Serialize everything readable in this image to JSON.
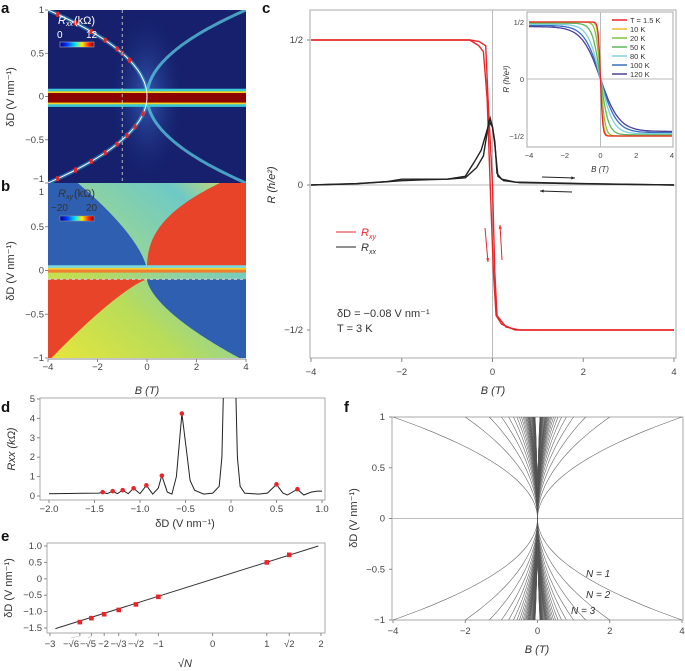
{
  "panel_letters": {
    "a": "a",
    "b": "b",
    "c": "c",
    "d": "d",
    "e": "e",
    "f": "f"
  },
  "colors": {
    "rxy": "#e8262a",
    "rxx": "#222222",
    "marker": "#e8262a",
    "heat_bg": "#16206c"
  },
  "chart_data": [
    {
      "id": "a",
      "type": "heatmap",
      "xlabel": "",
      "ylabel": "δD (V nm⁻¹)",
      "xlim": [
        -4,
        4
      ],
      "ylim": [
        -1,
        1
      ],
      "yticks": [
        "1",
        "0.5",
        "0",
        "−0.5",
        "−1"
      ],
      "ytick_values": [
        1,
        0.5,
        0,
        -0.5,
        -1
      ],
      "colorbar": {
        "symbol": "R",
        "subscript": "xx",
        "unit": "(kΩ)",
        "min_label": "0",
        "max_label": "12",
        "colormap": "jet"
      },
      "dashed_line": {
        "orientation": "vertical",
        "B": -1
      }
    },
    {
      "id": "b",
      "type": "heatmap",
      "xlabel": "B (T)",
      "ylabel": "δD (V nm⁻¹)",
      "xlim": [
        -4,
        4
      ],
      "ylim": [
        -1,
        1
      ],
      "xticks": [
        "−4",
        "−2",
        "0",
        "2",
        "4"
      ],
      "xtick_values": [
        -4,
        -2,
        0,
        2,
        4
      ],
      "yticks": [
        "1",
        "0.5",
        "0",
        "−0.5",
        "−1"
      ],
      "ytick_values": [
        1,
        0.5,
        0,
        -0.5,
        -1
      ],
      "colorbar": {
        "symbol": "R",
        "subscript": "xy",
        "unit": "(kΩ)",
        "min_label": "−20",
        "max_label": "20",
        "colormap": "jet"
      },
      "dashed_line": {
        "orientation": "horizontal",
        "deltaD": -0.1
      }
    },
    {
      "id": "c",
      "type": "line",
      "xlabel": "B (T)",
      "ylabel": "R (h/e²)",
      "xlim": [
        -4,
        4
      ],
      "ylim": [
        -0.6,
        0.6
      ],
      "xticks": [
        "−4",
        "−2",
        "0",
        "2",
        "4"
      ],
      "xtick_values": [
        -4,
        -2,
        0,
        2,
        4
      ],
      "yticks": [
        "1/2",
        "0",
        "−1/2"
      ],
      "ytick_values": [
        0.5,
        0,
        -0.5
      ],
      "legend": [
        {
          "symbol": "R",
          "subscript": "xy",
          "color": "#e8262a"
        },
        {
          "symbol": "R",
          "subscript": "xx",
          "color": "#222222"
        }
      ],
      "annotation_lines": [
        "δD = −0.08 V nm⁻¹",
        "T = 3 K"
      ],
      "series": [
        {
          "legend": 0,
          "x": [
            -4,
            -0.5,
            -0.3,
            -0.2,
            -0.12,
            -0.05,
            0.02,
            0.08,
            0.2,
            0.5,
            4
          ],
          "y": [
            0.5,
            0.5,
            0.48,
            0.46,
            0.3,
            0,
            -0.3,
            -0.45,
            -0.48,
            -0.5,
            -0.5
          ]
        },
        {
          "legend": 0,
          "x": [
            -4,
            -0.5,
            -0.3,
            -0.15,
            -0.1,
            0,
            0.05,
            0.1,
            0.3,
            0.6,
            4
          ],
          "y": [
            0.5,
            0.5,
            0.495,
            0.48,
            0.3,
            0,
            -0.3,
            -0.45,
            -0.49,
            -0.5,
            -0.5
          ]
        },
        {
          "legend": 1,
          "x": [
            -4,
            -3,
            -2.3,
            -2,
            -1.5,
            -1,
            -0.6,
            -0.4,
            -0.25,
            -0.1,
            -0.05,
            0,
            0.05,
            0.1,
            0.2,
            0.5,
            2,
            4
          ],
          "y": [
            0,
            0.005,
            0.012,
            0.02,
            0.02,
            0.02,
            0.03,
            0.08,
            0.12,
            0.2,
            0.23,
            0.2,
            0.15,
            0.04,
            0.02,
            0.01,
            0.005,
            0
          ]
        },
        {
          "legend": 1,
          "x": [
            -4,
            -3,
            -2,
            -1.5,
            -1,
            -0.6,
            -0.35,
            -0.2,
            -0.08,
            0,
            0.05,
            0.12,
            0.25,
            0.6,
            2,
            4
          ],
          "y": [
            0,
            0.004,
            0.015,
            0.018,
            0.02,
            0.025,
            0.06,
            0.1,
            0.22,
            0.2,
            0.14,
            0.03,
            0.015,
            0.008,
            0.004,
            0
          ]
        }
      ],
      "sweep_arrows": [
        {
          "color": "#222222",
          "direction": "right"
        },
        {
          "color": "#222222",
          "direction": "left"
        },
        {
          "color": "#e8262a",
          "direction": "down"
        },
        {
          "color": "#e8262a",
          "direction": "up"
        }
      ]
    },
    {
      "id": "c-inset",
      "type": "line",
      "xlabel": "B (T)",
      "ylabel": "R (h/e²)",
      "xlim": [
        -4,
        4
      ],
      "ylim": [
        -0.6,
        0.6
      ],
      "xticks": [
        "−4",
        "−2",
        "0",
        "2",
        "4"
      ],
      "xtick_values": [
        -4,
        -2,
        0,
        2,
        4
      ],
      "yticks": [
        "1/2",
        "0",
        "−1/2"
      ],
      "ytick_values": [
        0.5,
        0,
        -0.5
      ],
      "series": [
        {
          "name": "T = 1.5 K",
          "color": "#e8262a"
        },
        {
          "name": "10 K",
          "color": "#f5b82e"
        },
        {
          "name": "20 K",
          "color": "#7cc242"
        },
        {
          "name": "50 K",
          "color": "#5cb85c"
        },
        {
          "name": "80 K",
          "color": "#7fd0dc"
        },
        {
          "name": "100 K",
          "color": "#3a6fc0"
        },
        {
          "name": "120 K",
          "color": "#4a3f9a"
        }
      ],
      "legend_position": "top-right"
    },
    {
      "id": "d",
      "type": "line",
      "xlabel": "δD (V nm⁻¹)",
      "ylabel": "Rxx (kΩ)",
      "xlim": [
        -2,
        1
      ],
      "ylim": [
        0,
        5
      ],
      "xticks": [
        "−2.0",
        "−1.5",
        "−1.0",
        "−0.5",
        "0",
        "0.5",
        "1.0"
      ],
      "xtick_values": [
        -2,
        -1.5,
        -1,
        -0.5,
        0,
        0.5,
        1
      ],
      "yticks": [
        "5",
        "4",
        "3",
        "2",
        "1",
        "0"
      ],
      "ytick_values": [
        5,
        4,
        3,
        2,
        1,
        0
      ],
      "line": {
        "x": [
          -2,
          -1.6,
          -1.45,
          -1.41,
          -1.36,
          -1.3,
          -1.25,
          -1.19,
          -1.13,
          -1.07,
          -1,
          -0.93,
          -0.86,
          -0.8,
          -0.76,
          -0.7,
          -0.65,
          -0.6,
          -0.54,
          -0.48,
          -0.45,
          -0.4,
          -0.3,
          -0.2,
          -0.13,
          -0.1,
          -0.08,
          0.05,
          0.07,
          0.1,
          0.15,
          0.3,
          0.4,
          0.5,
          0.57,
          0.62,
          0.73,
          0.8,
          0.88,
          0.95,
          1
        ],
        "y": [
          0.12,
          0.14,
          0.15,
          0.2,
          0.12,
          0.25,
          0.12,
          0.3,
          0.12,
          0.4,
          0.12,
          0.55,
          0.1,
          0.4,
          1.05,
          0.2,
          0.1,
          1.0,
          4.25,
          2.0,
          0.8,
          0.3,
          0.1,
          0.15,
          0.5,
          2.0,
          6,
          6,
          2.0,
          0.5,
          0.15,
          0.1,
          0.15,
          0.6,
          0.15,
          0.05,
          0.35,
          0.05,
          0.2,
          0.25,
          0.25
        ]
      },
      "peaks": {
        "x": [
          -1.41,
          -1.3,
          -1.19,
          -1.07,
          -0.93,
          -0.76,
          -0.54,
          0.5,
          0.73
        ],
        "y": [
          0.2,
          0.25,
          0.3,
          0.4,
          0.55,
          1.05,
          4.25,
          0.6,
          0.35
        ]
      }
    },
    {
      "id": "e",
      "type": "scatter",
      "xlabel": "√N",
      "ylabel": "δD (V nm⁻¹)",
      "xlim": [
        -3,
        2
      ],
      "ylim": [
        -1.5,
        1.0
      ],
      "xticks": [
        "−3",
        "−√6",
        "−√5",
        "−2",
        "−√3",
        "−√2",
        "−1",
        "0",
        "1",
        "√2",
        "2"
      ],
      "xtick_values": [
        -3,
        -2.449,
        -2.236,
        -2,
        -1.732,
        -1.414,
        -1,
        0,
        1,
        1.414,
        2
      ],
      "yticks": [
        "1.0",
        "0.5",
        "0",
        "−0.5",
        "−1.0",
        "−1.5"
      ],
      "ytick_values": [
        1,
        0.5,
        0,
        -0.5,
        -1,
        -1.5
      ],
      "points": {
        "x": [
          -2.449,
          -2.236,
          -2,
          -1.732,
          -1.414,
          -1,
          1,
          1.414
        ],
        "y": [
          -1.32,
          -1.2,
          -1.08,
          -0.95,
          -0.78,
          -0.55,
          0.5,
          0.73
        ]
      },
      "fit_line": {
        "x": [
          -2.9,
          1.95
        ],
        "y": [
          -1.52,
          1.0
        ]
      }
    },
    {
      "id": "f",
      "type": "line",
      "xlabel": "B (T)",
      "ylabel": "δD (V nm⁻¹)",
      "xlim": [
        -4,
        4
      ],
      "ylim": [
        -1,
        1
      ],
      "xticks": [
        "−4",
        "−2",
        "0",
        "2",
        "4"
      ],
      "xtick_values": [
        -4,
        -2,
        0,
        2,
        4
      ],
      "yticks": [
        "1",
        "0.5",
        "0",
        "−0.5",
        "−1"
      ],
      "ytick_values": [
        1,
        0.5,
        0,
        -0.5,
        -1
      ],
      "curve_labels": [
        "N = 1",
        "N = 2",
        "N = 3"
      ],
      "landau_levels_N": [
        1,
        60
      ]
    }
  ]
}
